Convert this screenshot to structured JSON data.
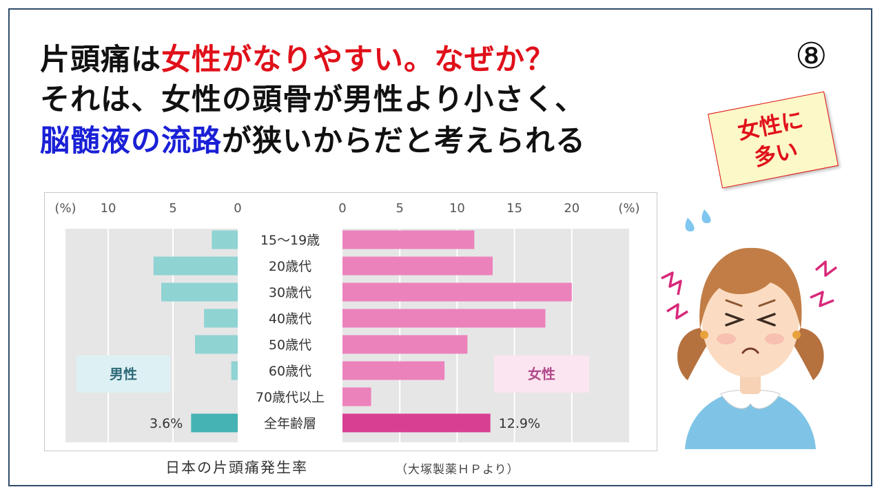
{
  "slide": {
    "title_line1": {
      "black": "片頭痛は",
      "red": "女性がなりやすい。なぜか？"
    },
    "title_line2": "それは、女性の頭骨が男性より小さく、",
    "title_line3": {
      "blue": "脳髄液の流路",
      "black": "が狭いからだと考えられる"
    },
    "slide_number": "⑧",
    "sticky_note": {
      "line1": "女性に",
      "line2": "多い"
    },
    "chart_caption": "日本の片頭痛発生率",
    "source_note": "（大塚製薬ＨＰより）"
  },
  "chart_data": {
    "type": "bar",
    "categories": [
      "15～19歳",
      "20歳代",
      "30歳代",
      "40歳代",
      "50歳代",
      "60歳代",
      "70歳代以上",
      "全年齢層"
    ],
    "series": [
      {
        "name": "男性",
        "values": [
          2.0,
          6.5,
          5.9,
          2.6,
          3.3,
          0.5,
          0,
          3.6
        ],
        "color": "#8fd3d3",
        "total_color": "#45b3b3"
      },
      {
        "name": "女性",
        "values": [
          11.5,
          13.1,
          20.0,
          17.7,
          10.9,
          8.9,
          2.5,
          12.9
        ],
        "color": "#ec82bc",
        "total_color": "#d83f92"
      }
    ],
    "male_ticks": [
      "(%)",
      "10",
      "5",
      "0"
    ],
    "female_ticks": [
      "0",
      "5",
      "10",
      "15",
      "20",
      "(%)"
    ],
    "male_label": "男性",
    "female_label": "女性",
    "total_labels": {
      "male": "3.6%",
      "female": "12.9%"
    },
    "male_xlim": [
      0,
      13.3
    ],
    "female_xlim": [
      0,
      25
    ],
    "colors": {
      "panel": "#e6e6e6",
      "gridline": "#ffffff",
      "male_box": "#ddf1f4",
      "female_box": "#fbe5f0",
      "male_text": "#2f6a78",
      "female_text": "#b04a8a"
    }
  }
}
